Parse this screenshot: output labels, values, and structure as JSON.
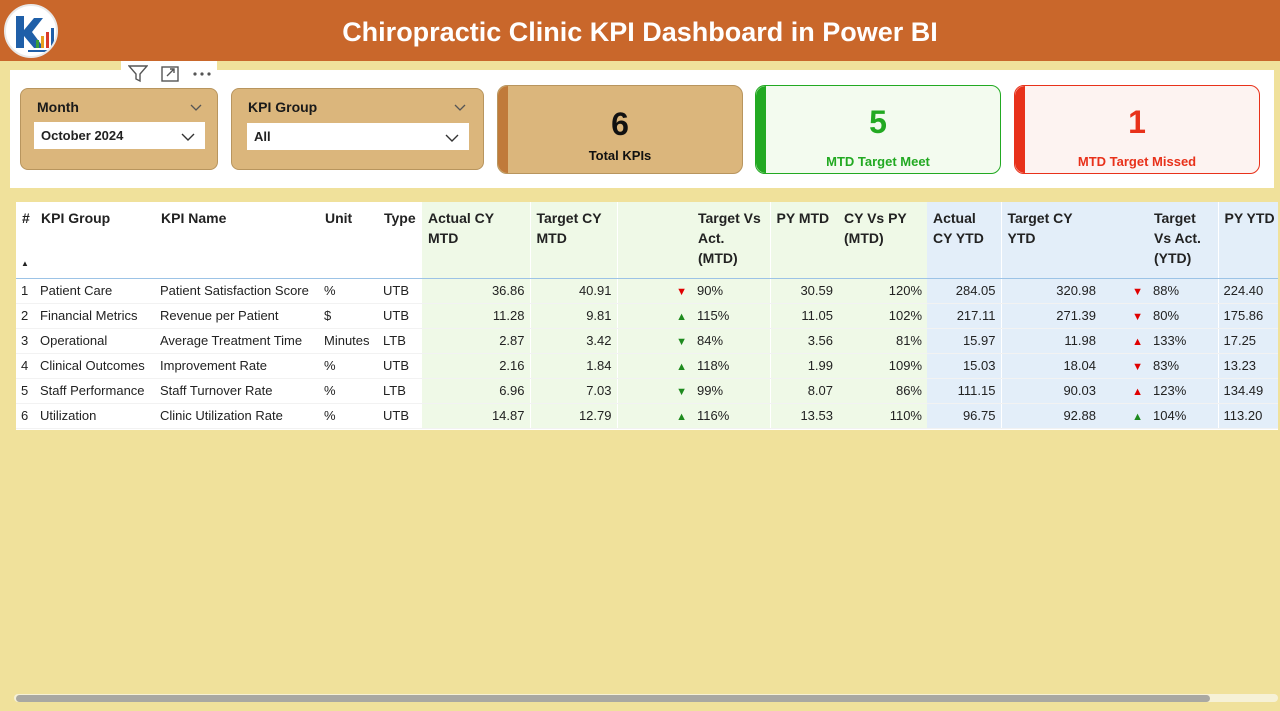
{
  "header": {
    "title": "Chiropractic Clinic KPI Dashboard in Power BI"
  },
  "colors": {
    "header_bg": "#c9672b",
    "page_bg": "#f0e19b",
    "slicer_bg": "#dbb67c",
    "green": "#22a922",
    "red": "#e8311a",
    "mtd_bg": "#eff9e7",
    "ytd_bg": "#e3eef9"
  },
  "icons": {
    "logo": "kpi-logo-icon",
    "filter": "filter-icon",
    "focus": "focus-mode-icon",
    "more": "more-options-icon"
  },
  "slicers": {
    "month": {
      "title": "Month",
      "value": "October 2024"
    },
    "kpi_group": {
      "title": "KPI Group",
      "value": "All"
    }
  },
  "cards": {
    "total": {
      "value": "6",
      "label": "Total KPIs"
    },
    "meet": {
      "value": "5",
      "label": "MTD Target Meet"
    },
    "missed": {
      "value": "1",
      "label": "MTD Target Missed"
    }
  },
  "table": {
    "headers": {
      "num": "#",
      "group": "KPI Group",
      "name": "KPI Name",
      "unit": "Unit",
      "type": "Type",
      "actual_mtd": "Actual CY MTD",
      "target_mtd": "Target CY MTD",
      "tva_mtd": "Target Vs Act. (MTD)",
      "py_mtd": "PY MTD",
      "cy_py_mtd": "CY Vs PY (MTD)",
      "actual_ytd": "Actual CY YTD",
      "target_ytd": "Target CY YTD",
      "tva_ytd": "Target Vs Act. (YTD)",
      "py_ytd": "PY YTD"
    },
    "rows": [
      {
        "num": "1",
        "group": "Patient Care",
        "name": "Patient Satisfaction Score",
        "unit": "%",
        "type": "UTB",
        "actual_mtd": "36.86",
        "target_mtd": "40.91",
        "mtd_arrow": "▼",
        "mtd_arrow_dir": "down",
        "tva_mtd": "90%",
        "py_mtd": "30.59",
        "cy_py_mtd": "120%",
        "actual_ytd": "284.05",
        "target_ytd": "320.98",
        "ytd_arrow": "▼",
        "ytd_arrow_dir": "down",
        "tva_ytd": "88%",
        "py_ytd": "224.40"
      },
      {
        "num": "2",
        "group": "Financial Metrics",
        "name": "Revenue per Patient",
        "unit": "$",
        "type": "UTB",
        "actual_mtd": "11.28",
        "target_mtd": "9.81",
        "mtd_arrow": "▲",
        "mtd_arrow_dir": "up",
        "tva_mtd": "115%",
        "py_mtd": "11.05",
        "cy_py_mtd": "102%",
        "actual_ytd": "217.11",
        "target_ytd": "271.39",
        "ytd_arrow": "▼",
        "ytd_arrow_dir": "down",
        "tva_ytd": "80%",
        "py_ytd": "175.86"
      },
      {
        "num": "3",
        "group": "Operational",
        "name": "Average Treatment Time",
        "unit": "Minutes",
        "type": "LTB",
        "actual_mtd": "2.87",
        "target_mtd": "3.42",
        "mtd_arrow": "▼",
        "mtd_arrow_dir": "down-good",
        "tva_mtd": "84%",
        "py_mtd": "3.56",
        "cy_py_mtd": "81%",
        "actual_ytd": "15.97",
        "target_ytd": "11.98",
        "ytd_arrow": "▲",
        "ytd_arrow_dir": "up-bad",
        "tva_ytd": "133%",
        "py_ytd": "17.25"
      },
      {
        "num": "4",
        "group": "Clinical Outcomes",
        "name": "Improvement Rate",
        "unit": "%",
        "type": "UTB",
        "actual_mtd": "2.16",
        "target_mtd": "1.84",
        "mtd_arrow": "▲",
        "mtd_arrow_dir": "up",
        "tva_mtd": "118%",
        "py_mtd": "1.99",
        "cy_py_mtd": "109%",
        "actual_ytd": "15.03",
        "target_ytd": "18.04",
        "ytd_arrow": "▼",
        "ytd_arrow_dir": "down",
        "tva_ytd": "83%",
        "py_ytd": "13.23"
      },
      {
        "num": "5",
        "group": "Staff Performance",
        "name": "Staff Turnover Rate",
        "unit": "%",
        "type": "LTB",
        "actual_mtd": "6.96",
        "target_mtd": "7.03",
        "mtd_arrow": "▼",
        "mtd_arrow_dir": "down-good",
        "tva_mtd": "99%",
        "py_mtd": "8.07",
        "cy_py_mtd": "86%",
        "actual_ytd": "111.15",
        "target_ytd": "90.03",
        "ytd_arrow": "▲",
        "ytd_arrow_dir": "up-bad",
        "tva_ytd": "123%",
        "py_ytd": "134.49"
      },
      {
        "num": "6",
        "group": "Utilization",
        "name": "Clinic Utilization Rate",
        "unit": "%",
        "type": "UTB",
        "actual_mtd": "14.87",
        "target_mtd": "12.79",
        "mtd_arrow": "▲",
        "mtd_arrow_dir": "up",
        "tva_mtd": "116%",
        "py_mtd": "13.53",
        "cy_py_mtd": "110%",
        "actual_ytd": "96.75",
        "target_ytd": "92.88",
        "ytd_arrow": "▲",
        "ytd_arrow_dir": "up",
        "tva_ytd": "104%",
        "py_ytd": "113.20"
      }
    ]
  }
}
